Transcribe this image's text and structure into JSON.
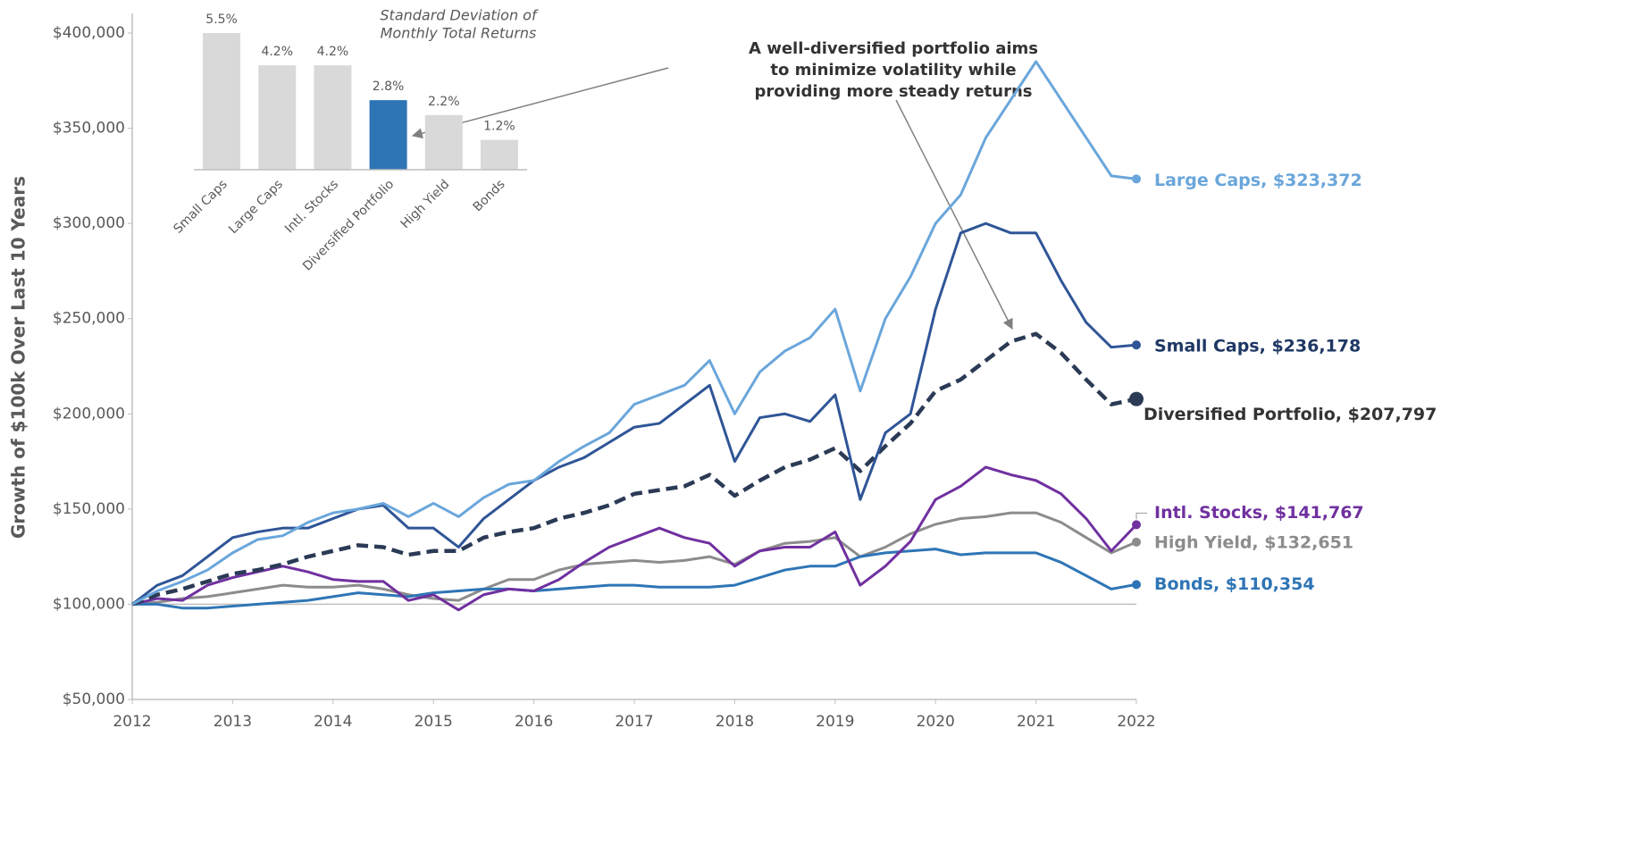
{
  "chart_data": [
    {
      "type": "line",
      "ylabel": "Growth of $100k Over Last 10 Years",
      "annotation": [
        "A well-diversified portfolio aims",
        "to minimize volatility while",
        "providing more steady returns"
      ],
      "x": [
        2012,
        2012.25,
        2012.5,
        2012.75,
        2013,
        2013.25,
        2013.5,
        2013.75,
        2014,
        2014.25,
        2014.5,
        2014.75,
        2015,
        2015.25,
        2015.5,
        2015.75,
        2016,
        2016.25,
        2016.5,
        2016.75,
        2017,
        2017.25,
        2017.5,
        2017.75,
        2018,
        2018.25,
        2018.5,
        2018.75,
        2019,
        2019.25,
        2019.5,
        2019.75,
        2020,
        2020.25,
        2020.5,
        2020.75,
        2021,
        2021.25,
        2021.5,
        2021.75,
        2022
      ],
      "xlim": [
        2012,
        2022
      ],
      "xticks": [
        2012,
        2013,
        2014,
        2015,
        2016,
        2017,
        2018,
        2019,
        2020,
        2021,
        2022
      ],
      "ylim": [
        50000,
        400000
      ],
      "yticks": [
        {
          "value": 50000,
          "label": "$50,000"
        },
        {
          "value": 100000,
          "label": "$100,000"
        },
        {
          "value": 150000,
          "label": "$150,000"
        },
        {
          "value": 200000,
          "label": "$200,000"
        },
        {
          "value": 250000,
          "label": "$250,000"
        },
        {
          "value": 300000,
          "label": "$300,000"
        },
        {
          "value": 350000,
          "label": "$350,000"
        },
        {
          "value": 400000,
          "label": "$400,000"
        }
      ],
      "baseline": 100000,
      "series": [
        {
          "name": "Large Caps, $323,372",
          "color": "#6aa6db",
          "values": [
            100000,
            107000,
            112000,
            118000,
            127000,
            134000,
            136000,
            143000,
            148000,
            150000,
            153000,
            146000,
            153000,
            146000,
            156000,
            163000,
            165000,
            175000,
            183000,
            190000,
            205000,
            210000,
            215000,
            228000,
            200000,
            222000,
            233000,
            240000,
            255000,
            212000,
            250000,
            272000,
            300000,
            315000,
            345000,
            365000,
            385000,
            365000,
            345000,
            325000,
            323372
          ]
        },
        {
          "name": "Small Caps, $236,178",
          "color": "#2f5597",
          "label_color": "#1f3864",
          "values": [
            100000,
            110000,
            115000,
            125000,
            135000,
            138000,
            140000,
            140000,
            145000,
            150000,
            152000,
            140000,
            140000,
            130000,
            145000,
            155000,
            165000,
            172000,
            177000,
            185000,
            193000,
            195000,
            205000,
            215000,
            175000,
            198000,
            200000,
            196000,
            210000,
            155000,
            190000,
            200000,
            255000,
            295000,
            300000,
            295000,
            295000,
            270000,
            248000,
            235000,
            236178
          ]
        },
        {
          "name": "Diversified Portfolio, $207,797",
          "color": "#2b3a55",
          "label_color": "#333333",
          "dashed": true,
          "values": [
            100000,
            105000,
            108000,
            112000,
            116000,
            118000,
            121000,
            125000,
            128000,
            131000,
            130000,
            126000,
            128000,
            128000,
            135000,
            138000,
            140000,
            145000,
            148000,
            152000,
            158000,
            160000,
            162000,
            168000,
            157000,
            165000,
            172000,
            176000,
            182000,
            170000,
            183000,
            195000,
            212000,
            218000,
            228000,
            238000,
            242000,
            232000,
            218000,
            205000,
            207797
          ]
        },
        {
          "name": "Intl. Stocks, $141,767",
          "color": "#7030a0",
          "values": [
            100000,
            103000,
            102000,
            110000,
            114000,
            117000,
            120000,
            117000,
            113000,
            112000,
            112000,
            102000,
            105000,
            97000,
            105000,
            108000,
            107000,
            113000,
            122000,
            130000,
            135000,
            140000,
            135000,
            132000,
            120000,
            128000,
            130000,
            130000,
            138000,
            110000,
            120000,
            133000,
            155000,
            162000,
            172000,
            168000,
            165000,
            158000,
            145000,
            128000,
            141767
          ]
        },
        {
          "name": "High Yield, $132,651",
          "color": "#8c8c8c",
          "values": [
            100000,
            101000,
            103000,
            104000,
            106000,
            108000,
            110000,
            109000,
            109000,
            110000,
            108000,
            105000,
            103000,
            102000,
            108000,
            113000,
            113000,
            118000,
            121000,
            122000,
            123000,
            122000,
            123000,
            125000,
            121000,
            128000,
            132000,
            133000,
            135000,
            125000,
            130000,
            137000,
            142000,
            145000,
            146000,
            148000,
            148000,
            143000,
            135000,
            127000,
            132651
          ]
        },
        {
          "name": "Bonds, $110,354",
          "color": "#2e75b6",
          "values": [
            100000,
            100000,
            98000,
            98000,
            99000,
            100000,
            101000,
            102000,
            104000,
            106000,
            105000,
            104000,
            106000,
            107000,
            108000,
            108000,
            107000,
            108000,
            109000,
            110000,
            110000,
            109000,
            109000,
            109000,
            110000,
            114000,
            118000,
            120000,
            120000,
            125000,
            127000,
            128000,
            129000,
            126000,
            127000,
            127000,
            127000,
            122000,
            115000,
            108000,
            110354
          ]
        }
      ]
    },
    {
      "type": "bar",
      "title": [
        "Standard Deviation of",
        "Monthly Total Returns"
      ],
      "categories": [
        "Small Caps",
        "Large Caps",
        "Intl. Stocks",
        "Diversified Portfolio",
        "High Yield",
        "Bonds"
      ],
      "values": [
        5.5,
        4.2,
        4.2,
        2.8,
        2.2,
        1.2
      ],
      "value_labels": [
        "5.5%",
        "4.2%",
        "4.2%",
        "2.8%",
        "2.2%",
        "1.2%"
      ],
      "colors": [
        "#d9d9d9",
        "#d9d9d9",
        "#d9d9d9",
        "#2e75b6",
        "#d9d9d9",
        "#d9d9d9"
      ],
      "ylim": [
        0,
        5.5
      ]
    }
  ]
}
